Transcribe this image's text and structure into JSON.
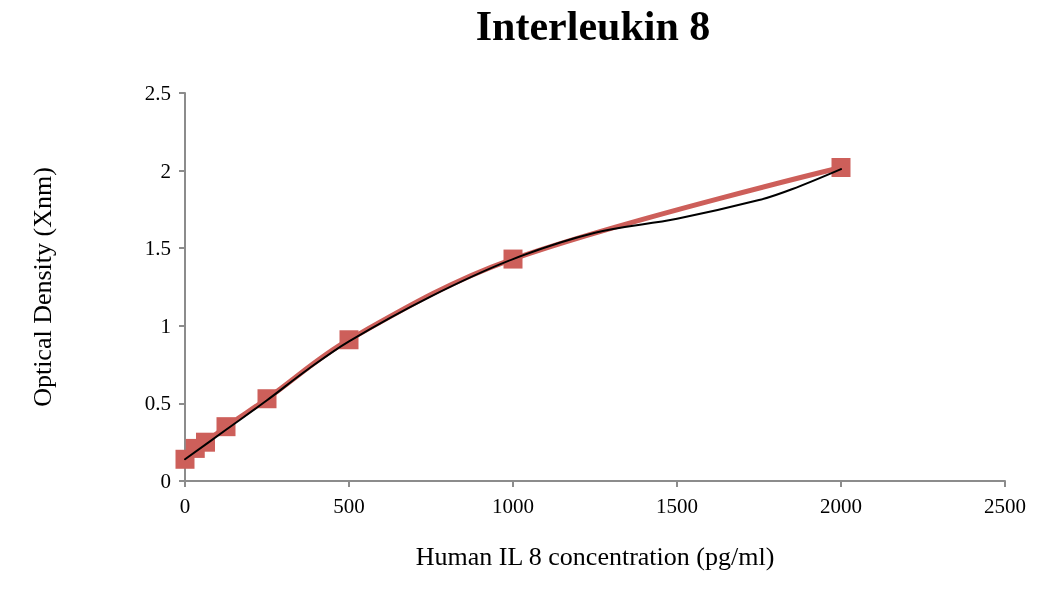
{
  "chart_data": {
    "type": "line",
    "title": "Interleukin 8",
    "xlabel": "Human IL 8 concentration (pg/ml)",
    "ylabel": "Optical Density (Xnm)",
    "xlim": [
      0,
      2500
    ],
    "xticks": [
      0,
      500,
      1000,
      1500,
      2000,
      2500
    ],
    "ylim": [
      0,
      2.5
    ],
    "yticks": [
      0,
      0.5,
      1,
      1.5,
      2,
      2.5
    ],
    "grid": false,
    "series": [
      {
        "color": "#cd5f5a",
        "marker": "square",
        "x": [
          0,
          31.25,
          62.5,
          125,
          250,
          500,
          1000,
          2000
        ],
        "values": [
          0.14,
          0.21,
          0.25,
          0.35,
          0.53,
          0.91,
          1.43,
          2.02
        ]
      },
      {
        "color": "#000000",
        "marker": "none",
        "x": [
          0,
          125,
          250,
          375,
          500,
          750,
          1000,
          1250,
          1500,
          1750,
          1850,
          2000
        ],
        "values": [
          0.14,
          0.33,
          0.52,
          0.72,
          0.9,
          1.19,
          1.43,
          1.6,
          1.69,
          1.81,
          1.88,
          2.01
        ]
      }
    ]
  }
}
